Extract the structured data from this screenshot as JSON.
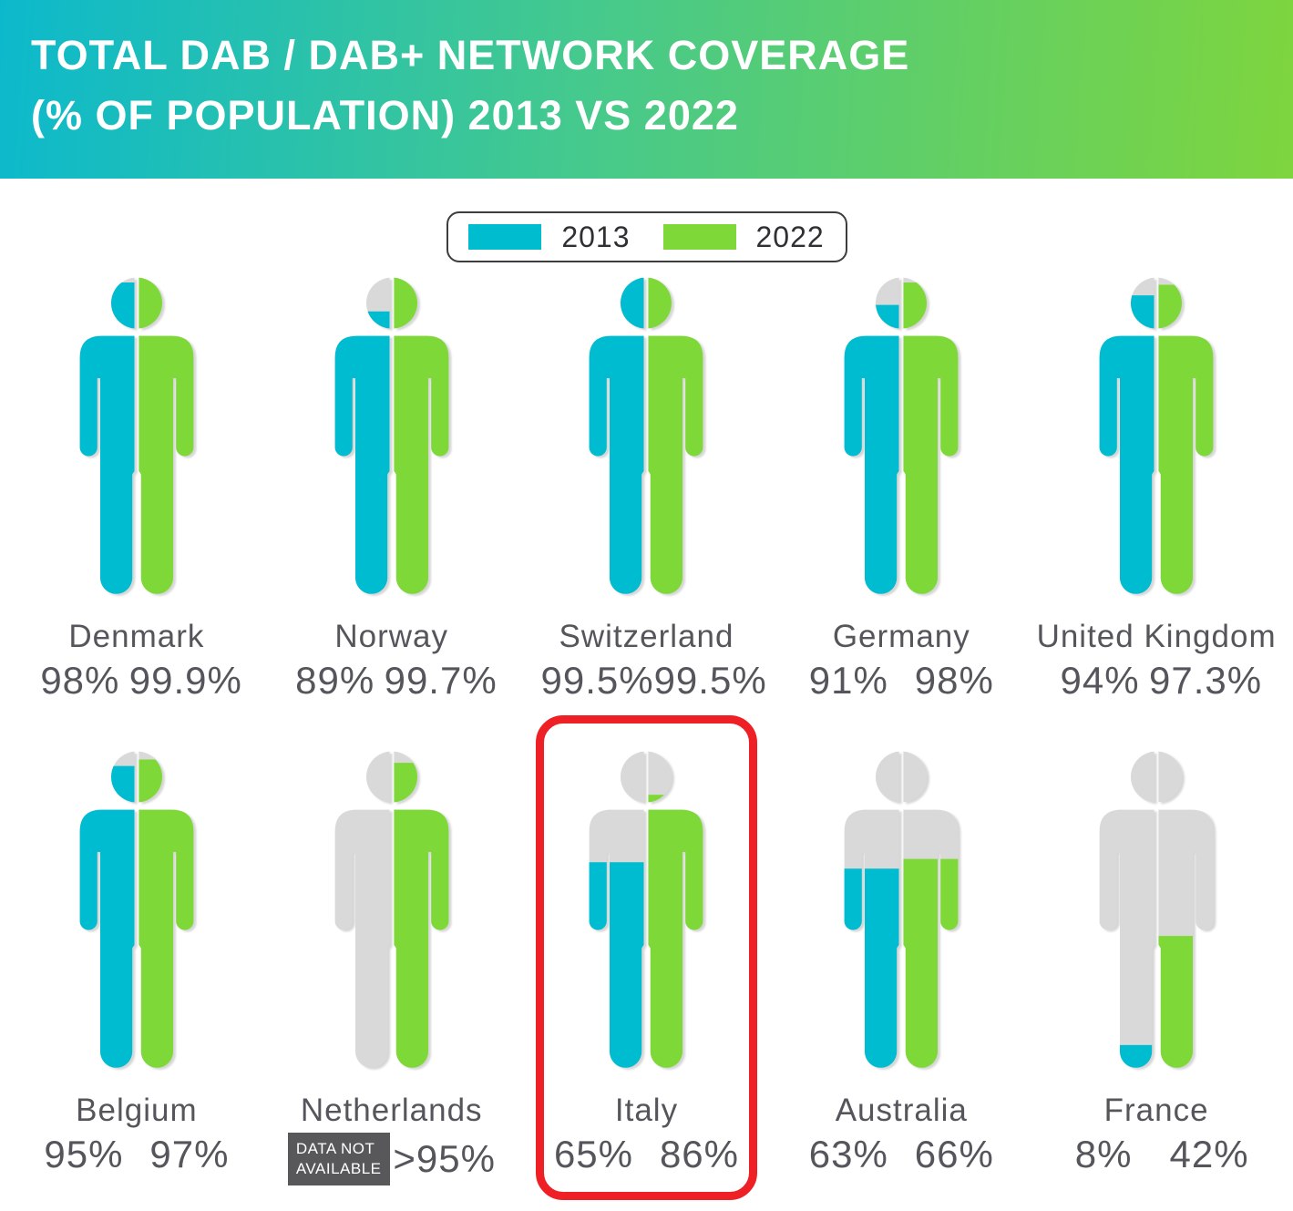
{
  "header": {
    "title_line1": "TOTAL DAB / DAB+ NETWORK COVERAGE",
    "title_line2": "(% OF POPULATION) 2013 VS 2022"
  },
  "legend": {
    "items": [
      {
        "label": "2013",
        "color": "#00bccf"
      },
      {
        "label": "2022",
        "color": "#7ed838"
      }
    ]
  },
  "colors": {
    "color_2013": "#00bcd1",
    "color_2022": "#7ed838",
    "silhouette_gray": "#d9d9d9",
    "highlight_red": "#ee2026",
    "badge_bg": "#58585a",
    "text_gray": "#54565b",
    "header_gradient_start": "#0cb9cc",
    "header_gradient_end": "#7ed53e"
  },
  "chart_data": {
    "type": "pictogram",
    "title": "TOTAL DAB / DAB+ NETWORK COVERAGE (% OF POPULATION) 2013 VS 2022",
    "series_years": [
      "2013",
      "2022"
    ],
    "legend_position": "top-center",
    "value_range": [
      0,
      100
    ],
    "countries": [
      {
        "name": "Denmark",
        "value_2013": 98,
        "label_2013": "98%",
        "value_2022": 99.9,
        "label_2022": "99.9%"
      },
      {
        "name": "Norway",
        "value_2013": 89,
        "label_2013": "89%",
        "value_2022": 99.7,
        "label_2022": "99.7%"
      },
      {
        "name": "Switzerland",
        "value_2013": 99.5,
        "label_2013": "99.5%",
        "value_2022": 99.5,
        "label_2022": "99.5%"
      },
      {
        "name": "Germany",
        "value_2013": 91,
        "label_2013": "91%",
        "value_2022": 98,
        "label_2022": "98%"
      },
      {
        "name": "United Kingdom",
        "value_2013": 94,
        "label_2013": "94%",
        "value_2022": 97.3,
        "label_2022": "97.3%"
      },
      {
        "name": "Belgium",
        "value_2013": 95,
        "label_2013": "95%",
        "value_2022": 97,
        "label_2022": "97%"
      },
      {
        "name": "Netherlands",
        "value_2013": null,
        "label_2013": "DATA NOT AVAILABLE",
        "badge_lines": [
          "DATA NOT",
          "AVAILABLE"
        ],
        "data_not_available": true,
        "value_2022": 96,
        "label_2022": ">95%"
      },
      {
        "name": "Italy",
        "value_2013": 65,
        "label_2013": "65%",
        "value_2022": 86,
        "label_2022": "86%",
        "highlighted": true
      },
      {
        "name": "Australia",
        "value_2013": 63,
        "label_2013": "63%",
        "value_2022": 66,
        "label_2022": "66%"
      },
      {
        "name": "France",
        "value_2013": 8,
        "label_2013": "8%",
        "value_2022": 42,
        "label_2022": "42%"
      }
    ]
  }
}
